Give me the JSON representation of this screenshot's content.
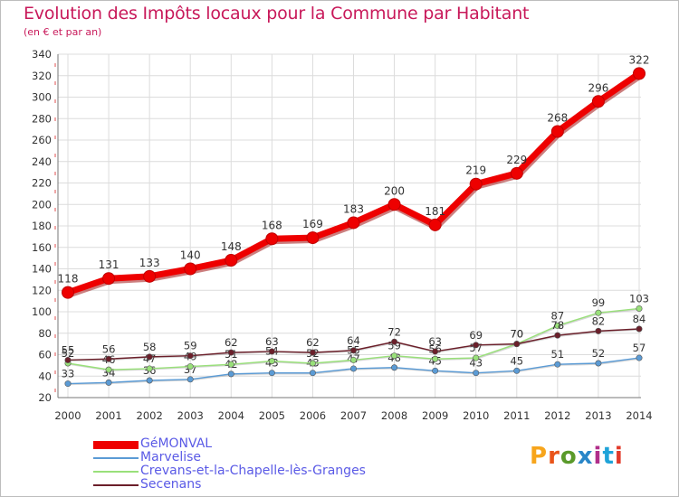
{
  "title": "Evolution des Impôts locaux pour la Commune par Habitant",
  "subtitle": "(en € et par an)",
  "logo": {
    "text": "Proxiti",
    "colors": [
      "#f7a51c",
      "#e9541a",
      "#5a9a2b",
      "#2a86c8",
      "#b02e8a",
      "#1fa3d8",
      "#e23a2a"
    ]
  },
  "chart_data": {
    "type": "line",
    "x": [
      2000,
      2001,
      2002,
      2003,
      2004,
      2005,
      2006,
      2007,
      2008,
      2009,
      2010,
      2011,
      2012,
      2013,
      2014
    ],
    "ylim": [
      20,
      340
    ],
    "yticks": [
      20,
      40,
      60,
      80,
      100,
      120,
      140,
      160,
      180,
      200,
      220,
      240,
      260,
      280,
      300,
      320,
      340
    ],
    "grid": true,
    "legend_position": "bottom-left",
    "series": [
      {
        "name": "GéMONVAL",
        "color": "#ee0000",
        "values": [
          118,
          131,
          133,
          140,
          148,
          168,
          169,
          183,
          200,
          181,
          219,
          229,
          268,
          296,
          322
        ]
      },
      {
        "name": "Marvelise",
        "color": "#5b9bd5",
        "values": [
          33,
          34,
          36,
          37,
          42,
          43,
          43,
          47,
          48,
          45,
          43,
          45,
          51,
          52,
          57
        ]
      },
      {
        "name": "Crevans-et-la-Chapelle-lès-Granges",
        "color": "#99e07a",
        "values": [
          52,
          46,
          47,
          49,
          51,
          54,
          52,
          55,
          59,
          56,
          57,
          70,
          87,
          99,
          103
        ]
      },
      {
        "name": "Secenans",
        "color": "#6b1f2a",
        "values": [
          55,
          56,
          58,
          59,
          62,
          63,
          62,
          64,
          72,
          63,
          69,
          70,
          78,
          82,
          84
        ]
      }
    ]
  }
}
